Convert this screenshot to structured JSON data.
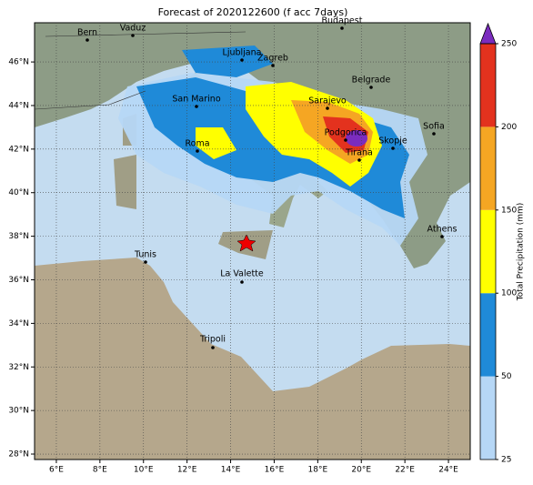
{
  "map": {
    "title": "Forecast of 2020122600 (f acc 7days)",
    "xlim": [
      5,
      25
    ],
    "ylim": [
      27.75,
      47.8
    ],
    "xticks": [
      {
        "value": 6,
        "label": "6°E"
      },
      {
        "value": 8,
        "label": "8°E"
      },
      {
        "value": 10,
        "label": "10°E"
      },
      {
        "value": 12,
        "label": "12°E"
      },
      {
        "value": 14,
        "label": "14°E"
      },
      {
        "value": 16,
        "label": "16°E"
      },
      {
        "value": 18,
        "label": "18°E"
      },
      {
        "value": 20,
        "label": "20°E"
      },
      {
        "value": 22,
        "label": "22°E"
      },
      {
        "value": 24,
        "label": "24°E"
      }
    ],
    "yticks": [
      {
        "value": 28,
        "label": "28°N"
      },
      {
        "value": 30,
        "label": "30°N"
      },
      {
        "value": 32,
        "label": "32°N"
      },
      {
        "value": 34,
        "label": "34°N"
      },
      {
        "value": 36,
        "label": "36°N"
      },
      {
        "value": 38,
        "label": "38°N"
      },
      {
        "value": 40,
        "label": "40°N"
      },
      {
        "value": 42,
        "label": "42°N"
      },
      {
        "value": 44,
        "label": "44°N"
      },
      {
        "value": 46,
        "label": "46°N"
      }
    ],
    "grid": true,
    "cities": [
      "Bern",
      "Vaduz",
      "Budapest",
      "Ljubljana",
      "Zagreb",
      "Belgrade",
      "San Marino",
      "Sarajevo",
      "Roma",
      "Podgorica",
      "Skopje",
      "Sofia",
      "Tirana",
      "Athens",
      "Tunis",
      "La Valette",
      "Tripoli"
    ],
    "colorbar": {
      "label": "Total Precipitation (mm)",
      "levels": [
        25,
        50,
        100,
        150,
        200,
        250
      ],
      "colors": [
        "#b6d7f6",
        "#1f8ad8",
        "#ffff00",
        "#f5a623",
        "#e3321e"
      ],
      "extend_color": "#7b2cbf"
    }
  }
}
